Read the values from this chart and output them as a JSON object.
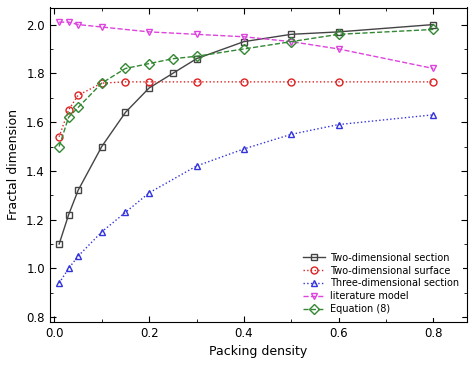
{
  "two_dim_section": {
    "x": [
      0.01,
      0.03,
      0.05,
      0.1,
      0.15,
      0.2,
      0.25,
      0.3,
      0.4,
      0.5,
      0.6,
      0.8
    ],
    "y": [
      1.1,
      1.22,
      1.32,
      1.5,
      1.64,
      1.74,
      1.8,
      1.86,
      1.93,
      1.96,
      1.97,
      2.0
    ],
    "color": "#444444",
    "linestyle": "-",
    "marker": "s",
    "markerfacecolor": "none",
    "label": "Two-dimensional section"
  },
  "two_dim_surface": {
    "x": [
      0.01,
      0.03,
      0.05,
      0.1,
      0.15,
      0.2,
      0.3,
      0.4,
      0.5,
      0.6,
      0.8
    ],
    "y": [
      1.54,
      1.65,
      1.71,
      1.76,
      1.765,
      1.765,
      1.765,
      1.765,
      1.765,
      1.765,
      1.765
    ],
    "color": "#dd2222",
    "linestyle": ":",
    "marker": "o",
    "markerfacecolor": "none",
    "label": "Two-dimensional surface"
  },
  "three_dim_section": {
    "x": [
      0.01,
      0.03,
      0.05,
      0.1,
      0.15,
      0.2,
      0.3,
      0.4,
      0.5,
      0.6,
      0.8
    ],
    "y": [
      0.94,
      1.0,
      1.05,
      1.15,
      1.23,
      1.31,
      1.42,
      1.49,
      1.55,
      1.59,
      1.63
    ],
    "color": "#3333dd",
    "linestyle": ":",
    "marker": "^",
    "markerfacecolor": "none",
    "label": "Three-dimensional section"
  },
  "literature_model": {
    "x": [
      0.01,
      0.03,
      0.05,
      0.1,
      0.2,
      0.3,
      0.4,
      0.5,
      0.6,
      0.8
    ],
    "y": [
      2.01,
      2.01,
      2.0,
      1.99,
      1.97,
      1.96,
      1.95,
      1.93,
      1.9,
      1.82
    ],
    "color": "#dd44dd",
    "linestyle": "--",
    "marker": "v",
    "markerfacecolor": "none",
    "label": "literature model"
  },
  "equation8": {
    "x": [
      0.01,
      0.03,
      0.05,
      0.1,
      0.15,
      0.2,
      0.25,
      0.3,
      0.4,
      0.5,
      0.6,
      0.8
    ],
    "y": [
      1.5,
      1.62,
      1.66,
      1.76,
      1.82,
      1.84,
      1.86,
      1.87,
      1.9,
      1.93,
      1.96,
      1.98
    ],
    "color": "#338833",
    "linestyle": "--",
    "marker": "D",
    "markerfacecolor": "none",
    "label": "Equation (8)"
  },
  "xlim": [
    -0.01,
    0.87
  ],
  "ylim": [
    0.78,
    2.07
  ],
  "xlabel": "Packing density",
  "ylabel": "Fractal dimension",
  "xticks": [
    0.0,
    0.2,
    0.4,
    0.6,
    0.8
  ],
  "yticks": [
    0.8,
    1.0,
    1.2,
    1.4,
    1.6,
    1.8,
    2.0
  ],
  "legend_loc": "lower right",
  "markersize": 5,
  "linewidth": 1.0,
  "legend_fontsize": 7.0,
  "axis_fontsize": 9,
  "tick_fontsize": 8.5
}
